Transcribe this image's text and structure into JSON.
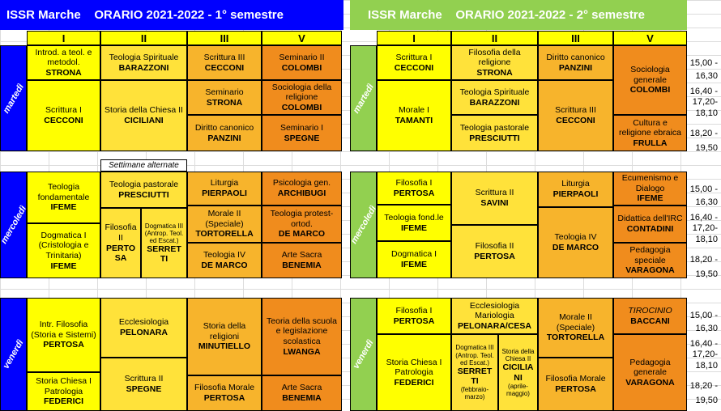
{
  "colors": {
    "blue": "#0000ff",
    "green": "#92d050",
    "y": "#ffff00",
    "y2": "#ffe23a",
    "o1": "#f7b42c",
    "o2": "#f08c1d",
    "o3": "#c8620c"
  },
  "sem1": {
    "title": "ISSR Marche    ORARIO 2021-2022 - 1° semestre",
    "cols": [
      "I",
      "II",
      "III",
      "V"
    ]
  },
  "sem2": {
    "title": "ISSR Marche    ORARIO 2021-2022 - 2° semestre",
    "cols": [
      "I",
      "II",
      "III",
      "V"
    ]
  },
  "days": {
    "tue": "martedì",
    "wed": "mercoledì",
    "fri": "venerdì"
  },
  "note": "Settimane alternate",
  "times": {
    "tue": [
      "15,00 -",
      "16,30",
      "16,40 -",
      "17,20-",
      "18,10",
      "18,20 -",
      "19,50"
    ],
    "wed": [
      "15,00 -",
      "16,30",
      "16,40 -",
      "17,20-",
      "18,10",
      "18,20 -",
      "19,50"
    ],
    "fri": [
      "15,00 -",
      "16,30",
      "16,40 -",
      "17,20-",
      "18,10",
      "18,20 -",
      "19,50"
    ]
  },
  "s1": {
    "tue_I_a": {
      "t": "Introd. a teol. e metodol.",
      "n": "STRONA"
    },
    "tue_II_a": {
      "t": "Teologia Spirituale",
      "n": "BARAZZONI"
    },
    "tue_III_a": {
      "t": "Scrittura III",
      "n": "CECCONI"
    },
    "tue_V_a": {
      "t": "Seminario II",
      "n": "COLOMBI"
    },
    "tue_I_b": {
      "t": "Scrittura I",
      "n": "CECCONI"
    },
    "tue_II_b": {
      "t": "Storia della Chiesa II",
      "n": "CICILIANI"
    },
    "tue_III_b": {
      "t": "Seminario",
      "n": "STRONA"
    },
    "tue_V_b": {
      "t": "Sociologia della religione",
      "n": "COLOMBI"
    },
    "tue_III_c": {
      "t": "Diritto canonico",
      "n": "PANZINI"
    },
    "tue_V_c": {
      "t": "Seminario I",
      "n": "SPEGNE"
    },
    "wed_I_a": {
      "t": "Teologia fondamentale",
      "n": "IFEME"
    },
    "wed_II_a": {
      "t": "Teologia pastorale",
      "n": "PRESCIUTTI"
    },
    "wed_III_a": {
      "t": "Liturgia",
      "n": "PIERPAOLI"
    },
    "wed_V_a": {
      "t": "Psicologia gen.",
      "n": "ARCHIBUGI"
    },
    "wed_I_b": {
      "t": "Dogmatica I (Cristologia e Trinitaria)",
      "n": "IFEME"
    },
    "wed_II_b1": {
      "t": "Filosofia II",
      "n": "PERTO SA"
    },
    "wed_II_b2": {
      "t": "Dogmatica III (Antrop. Teol. ed Escat.)",
      "n": "SERRET TI"
    },
    "wed_III_b": {
      "t": "Morale  II (Speciale)",
      "n": "TORTORELLA"
    },
    "wed_V_b": {
      "t": "Teologia protest-ortod.",
      "n": "DE MARCO"
    },
    "wed_III_c": {
      "t": "Teologia IV",
      "n": "DE MARCO"
    },
    "wed_V_c": {
      "t": "Arte Sacra",
      "n": "BENEMIA"
    },
    "fri_I_a": {
      "t": "Intr. Filosofia (Storia e Sistemi)",
      "n": "PERTOSA"
    },
    "fri_II_a": {
      "t": "Ecclesiologia",
      "n": "PELONARA"
    },
    "fri_III_a": {
      "t": "Storia della religioni",
      "n": "MINUTIELLO"
    },
    "fri_V_a": {
      "t": "Teoria della scuola e legislazione scolastica",
      "n": "LWANGA"
    },
    "fri_I_b": {
      "t": "Storia Chiesa I Patrologia",
      "n": "FEDERICI"
    },
    "fri_II_b": {
      "t": "Scrittura II",
      "n": "SPEGNE"
    },
    "fri_III_b": {
      "t": "Filosofia Morale",
      "n": "PERTOSA"
    },
    "fri_V_b": {
      "t": "Arte Sacra",
      "n": "BENEMIA"
    }
  },
  "s2": {
    "tue_I_a": {
      "t": "Scrittura I",
      "n": "CECCONI"
    },
    "tue_II_a": {
      "t": "Filosofia della religione",
      "n": "STRONA"
    },
    "tue_III_a": {
      "t": "Diritto canonico",
      "n": "PANZINI"
    },
    "tue_V_a": {
      "t": "Sociologia generale",
      "n": "COLOMBI"
    },
    "tue_I_b": {
      "t": "Morale I",
      "n": "TAMANTI"
    },
    "tue_II_b": {
      "t": "Teologia Spirituale",
      "n": "BARAZZONI"
    },
    "tue_III_b": {
      "t": "Scrittura III",
      "n": "CECCONI"
    },
    "tue_II_c": {
      "t": "Teologia pastorale",
      "n": "PRESCIUTTI"
    },
    "tue_V_c": {
      "t": "Cultura e religione ebraica",
      "n": "FRULLA"
    },
    "wed_I_a": {
      "t": "Filosofia I",
      "n": "PERTOSA"
    },
    "wed_II_a": {
      "t": "Scrittura II",
      "n": "SAVINI"
    },
    "wed_III_a": {
      "t": "Liturgia",
      "n": "PIERPAOLI"
    },
    "wed_V_a": {
      "t": "Ecumenismo e Dialogo",
      "n": "IFEME"
    },
    "wed_I_b": {
      "t": "Teologia fond.le",
      "n": "IFEME"
    },
    "wed_V_b": {
      "t": "Didattica dell'IRC",
      "n": "CONTADINI"
    },
    "wed_III_b": {
      "t": "Teologia IV",
      "n": "DE MARCO"
    },
    "wed_I_c": {
      "t": "Dogmatica I",
      "n": "IFEME"
    },
    "wed_II_c": {
      "t": "Filosofia II",
      "n": "PERTOSA"
    },
    "wed_V_c": {
      "t": "Pedagogia speciale",
      "n": "VARAGONA"
    },
    "fri_I_a": {
      "t": "Filosofia I",
      "n": "PERTOSA"
    },
    "fri_II_a": {
      "t": "Ecclesiologia Mariologia",
      "n": "PELONARA/CESA"
    },
    "fri_III_a": {
      "t": "Morale  II (Speciale)",
      "n": "TORTORELLA"
    },
    "fri_V_a": {
      "t": "TIROCINIO",
      "n": "BACCANI"
    },
    "fri_I_b": {
      "t": "Storia Chiesa I Patrologia",
      "n": "FEDERICI"
    },
    "fri_II_b1": {
      "t": "Dogmatica III (Antrop. Teol. ed Escat.)",
      "n": "SERRET TI",
      "x": "(febbraio-marzo)"
    },
    "fri_II_b2": {
      "t": "Storia della Chiesa II",
      "n": "CICILIA NI",
      "x": "(aprile-maggio)"
    },
    "fri_III_b": {
      "t": "Filosofia Morale",
      "n": "PERTOSA"
    },
    "fri_V_b": {
      "t": "Pedagogia generale",
      "n": "VARAGONA"
    }
  }
}
